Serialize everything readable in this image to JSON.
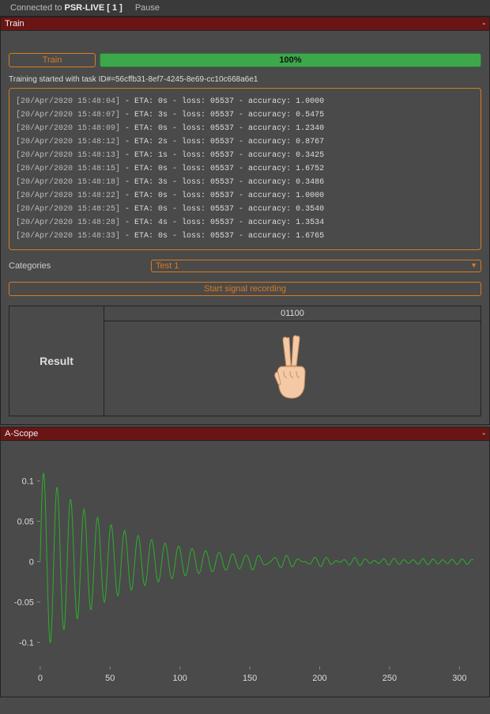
{
  "menubar": {
    "connected_prefix": "Connected to ",
    "connected_target": "PSR-LIVE [ 1 ]",
    "pause": "Pause"
  },
  "train_panel": {
    "title": "Train",
    "train_button": "Train",
    "progress_text": "100%",
    "progress_pct": 100,
    "task_line": "Training started with task ID#=56cffb31-8ef7-4245-8e69-cc10c668a6e1",
    "log": [
      {
        "ts": "[20/Apr/2020 15:48:04]",
        "rest": " - ETA: 0s - loss: 05537 - accuracy: 1.0000"
      },
      {
        "ts": "[20/Apr/2020 15:48:07]",
        "rest": " - ETA: 3s - loss: 05537 - accuracy: 0.5475"
      },
      {
        "ts": "[20/Apr/2020 15:48:09]",
        "rest": " - ETA: 0s - loss: 05537 - accuracy: 1.2340"
      },
      {
        "ts": "[20/Apr/2020 15:48:12]",
        "rest": " - ETA: 2s - loss: 05537 - accuracy: 0.8767"
      },
      {
        "ts": "[20/Apr/2020 15:48:13]",
        "rest": " - ETA: 1s - loss: 05537 - accuracy: 0.3425"
      },
      {
        "ts": "[20/Apr/2020 15:48:15]",
        "rest": " - ETA: 0s - loss: 05537 - accuracy: 1.6752"
      },
      {
        "ts": "[20/Apr/2020 15:48:18]",
        "rest": " - ETA: 3s - loss: 05537 - accuracy: 0.3486"
      },
      {
        "ts": "[20/Apr/2020 15:48:22]",
        "rest": " - ETA: 0s - loss: 05537 - accuracy: 1.0000"
      },
      {
        "ts": "[20/Apr/2020 15:48:25]",
        "rest": " - ETA: 0s - loss: 05537 - accuracy: 0.3540"
      },
      {
        "ts": "[20/Apr/2020 15:48:28]",
        "rest": " - ETA: 4s - loss: 05537 - accuracy: 1.3534"
      },
      {
        "ts": "[20/Apr/2020 15:48:33]",
        "rest": " - ETA: 0s - loss: 05537 - accuracy: 1.6765"
      }
    ],
    "categories_label": "Categories",
    "categories_value": "Test 1",
    "record_button": "Start signal recording",
    "result_label": "Result",
    "result_code": "01100",
    "result_gesture": "peace-sign"
  },
  "ascope_panel": {
    "title": "A-Scope",
    "chart": {
      "type": "line",
      "xlim": [
        0,
        310
      ],
      "ylim": [
        -0.13,
        0.13
      ],
      "x_ticks": [
        0,
        50,
        100,
        150,
        200,
        250,
        300
      ],
      "y_ticks": [
        -0.1,
        -0.05,
        0,
        0.05,
        0.1
      ],
      "signal_color": "#2bb02b",
      "background_color": "#4a4a4a",
      "axis_color": "#888888",
      "label_color": "#dddddd",
      "data_note": "damped oscillation, ~20 periods high-amplitude (±0.11) decaying to near-zero noise by x≈200",
      "initial_amplitude": 0.115,
      "decay_constant": 0.018,
      "frequency": 0.65
    }
  },
  "colors": {
    "panel_header": "#6a1515",
    "accent_orange": "#d97a1f",
    "progress_green": "#3ca84b",
    "background": "#4a4a4a"
  }
}
